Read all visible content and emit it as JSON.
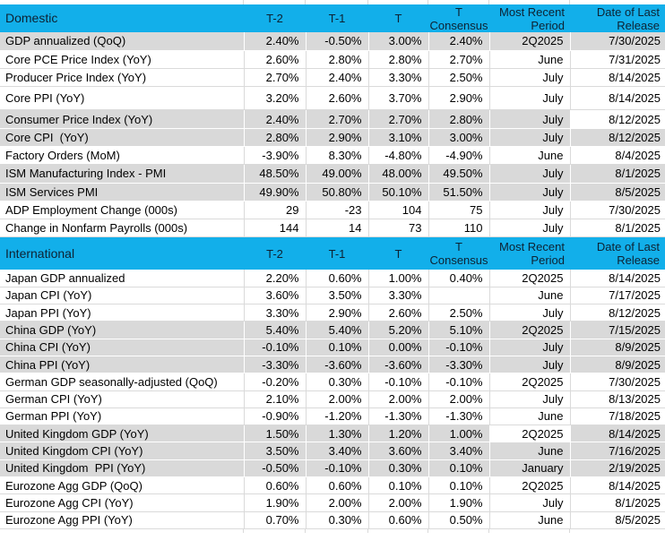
{
  "colors": {
    "header_bg": "#12AFEA",
    "row_gray": "#D9D9D9",
    "gridline": "#DADADA",
    "text": "#000000",
    "header_text": "#0D2233"
  },
  "columns": {
    "t2": "T-2",
    "t1": "T-1",
    "t": "T",
    "consensus": [
      "T",
      "Consensus"
    ],
    "period": [
      "Most Recent",
      "Period"
    ],
    "release": [
      "Date of Last",
      "Release"
    ]
  },
  "sections": [
    {
      "title": "Domestic",
      "rows": [
        {
          "label": "GDP annualized (QoQ)",
          "t2": "2.40%",
          "t1": "-0.50%",
          "t": "3.00%",
          "consensus": "2.40%",
          "period": "2Q2025",
          "release": "7/30/2025",
          "shade": "gray",
          "white_cells": []
        },
        {
          "label": "Core PCE Price Index (YoY)",
          "t2": "2.60%",
          "t1": "2.80%",
          "t": "2.80%",
          "consensus": "2.70%",
          "period": "June",
          "release": "7/31/2025",
          "shade": "white",
          "white_cells": []
        },
        {
          "label": "Producer Price Index (YoY)",
          "t2": "2.70%",
          "t1": "2.40%",
          "t": "3.30%",
          "consensus": "2.50%",
          "period": "July",
          "release": "8/14/2025",
          "shade": "white",
          "white_cells": []
        },
        {
          "label": "Core PPI (YoY)",
          "t2": "3.20%",
          "t1": "2.60%",
          "t": "3.70%",
          "consensus": "2.90%",
          "period": "July",
          "release": "8/14/2025",
          "shade": "white",
          "white_cells": [],
          "tall": true
        },
        {
          "label": "Consumer Price Index (YoY)",
          "t2": "2.40%",
          "t1": "2.70%",
          "t": "2.70%",
          "consensus": "2.80%",
          "period": "July",
          "release": "8/12/2025",
          "shade": "gray",
          "white_cells": [
            "release"
          ]
        },
        {
          "label": "Core CPI  (YoY)",
          "t2": "2.80%",
          "t1": "2.90%",
          "t": "3.10%",
          "consensus": "3.00%",
          "period": "July",
          "release": "8/12/2025",
          "shade": "gray",
          "white_cells": []
        },
        {
          "label": "Factory Orders (MoM)",
          "t2": "-3.90%",
          "t1": "8.30%",
          "t": "-4.80%",
          "consensus": "-4.90%",
          "period": "June",
          "release": "8/4/2025",
          "shade": "white",
          "white_cells": []
        },
        {
          "label": "ISM Manufacturing Index - PMI",
          "t2": "48.50%",
          "t1": "49.00%",
          "t": "48.00%",
          "consensus": "49.50%",
          "period": "July",
          "release": "8/1/2025",
          "shade": "gray",
          "white_cells": []
        },
        {
          "label": "ISM Services PMI",
          "t2": "49.90%",
          "t1": "50.80%",
          "t": "50.10%",
          "consensus": "51.50%",
          "period": "July",
          "release": "8/5/2025",
          "shade": "gray",
          "white_cells": []
        },
        {
          "label": "ADP Employment Change (000s)",
          "t2": "29",
          "t1": "-23",
          "t": "104",
          "consensus": "75",
          "period": "July",
          "release": "7/30/2025",
          "shade": "white",
          "white_cells": []
        },
        {
          "label": "Change in Nonfarm Payrolls (000s)",
          "t2": "144",
          "t1": "14",
          "t": "73",
          "consensus": "110",
          "period": "July",
          "release": "8/1/2025",
          "shade": "white",
          "white_cells": []
        }
      ]
    },
    {
      "title": "International",
      "rows": [
        {
          "label": "Japan GDP annualized",
          "t2": "2.20%",
          "t1": "0.60%",
          "t": "1.00%",
          "consensus": "0.40%",
          "period": "2Q2025",
          "release": "8/14/2025",
          "shade": "white",
          "white_cells": []
        },
        {
          "label": "Japan CPI (YoY)",
          "t2": "3.60%",
          "t1": "3.50%",
          "t": "3.30%",
          "consensus": "",
          "period": "June",
          "release": "7/17/2025",
          "shade": "white",
          "white_cells": []
        },
        {
          "label": "Japan PPI (YoY)",
          "t2": "3.30%",
          "t1": "2.90%",
          "t": "2.60%",
          "consensus": "2.50%",
          "period": "July",
          "release": "8/12/2025",
          "shade": "white",
          "white_cells": []
        },
        {
          "label": "China GDP (YoY)",
          "t2": "5.40%",
          "t1": "5.40%",
          "t": "5.20%",
          "consensus": "5.10%",
          "period": "2Q2025",
          "release": "7/15/2025",
          "shade": "gray",
          "white_cells": []
        },
        {
          "label": "China CPI (YoY)",
          "t2": "-0.10%",
          "t1": "0.10%",
          "t": "0.00%",
          "consensus": "-0.10%",
          "period": "July",
          "release": "8/9/2025",
          "shade": "gray",
          "white_cells": []
        },
        {
          "label": "China PPI (YoY)",
          "t2": "-3.30%",
          "t1": "-3.60%",
          "t": "-3.60%",
          "consensus": "-3.30%",
          "period": "July",
          "release": "8/9/2025",
          "shade": "gray",
          "white_cells": []
        },
        {
          "label": "German GDP seasonally-adjusted (QoQ)",
          "t2": "-0.20%",
          "t1": "0.30%",
          "t": "-0.10%",
          "consensus": "-0.10%",
          "period": "2Q2025",
          "release": "7/30/2025",
          "shade": "white",
          "white_cells": []
        },
        {
          "label": "German CPI (YoY)",
          "t2": "2.10%",
          "t1": "2.00%",
          "t": "2.00%",
          "consensus": "2.00%",
          "period": "July",
          "release": "8/13/2025",
          "shade": "white",
          "white_cells": []
        },
        {
          "label": "German PPI (YoY)",
          "t2": "-0.90%",
          "t1": "-1.20%",
          "t": "-1.30%",
          "consensus": "-1.30%",
          "period": "June",
          "release": "7/18/2025",
          "shade": "white",
          "white_cells": []
        },
        {
          "label": "United Kingdom GDP (YoY)",
          "t2": "1.50%",
          "t1": "1.30%",
          "t": "1.20%",
          "consensus": "1.00%",
          "period": "2Q2025",
          "release": "8/14/2025",
          "shade": "gray",
          "white_cells": [
            "period"
          ]
        },
        {
          "label": "United Kingdom CPI (YoY)",
          "t2": "3.50%",
          "t1": "3.40%",
          "t": "3.60%",
          "consensus": "3.40%",
          "period": "June",
          "release": "7/16/2025",
          "shade": "gray",
          "white_cells": []
        },
        {
          "label": "United Kingdom  PPI (YoY)",
          "t2": "-0.50%",
          "t1": "-0.10%",
          "t": "0.30%",
          "consensus": "0.10%",
          "period": "January",
          "release": "2/19/2025",
          "shade": "gray",
          "white_cells": []
        },
        {
          "label": "Eurozone Agg GDP (QoQ)",
          "t2": "0.60%",
          "t1": "0.60%",
          "t": "0.10%",
          "consensus": "0.10%",
          "period": "2Q2025",
          "release": "8/14/2025",
          "shade": "white",
          "white_cells": []
        },
        {
          "label": "Eurozone Agg CPI (YoY)",
          "t2": "1.90%",
          "t1": "2.00%",
          "t": "2.00%",
          "consensus": "1.90%",
          "period": "July",
          "release": "8/1/2025",
          "shade": "white",
          "white_cells": []
        },
        {
          "label": "Eurozone Agg PPI (YoY)",
          "t2": "0.70%",
          "t1": "0.30%",
          "t": "0.60%",
          "consensus": "0.50%",
          "period": "June",
          "release": "8/5/2025",
          "shade": "white",
          "white_cells": []
        }
      ]
    }
  ]
}
